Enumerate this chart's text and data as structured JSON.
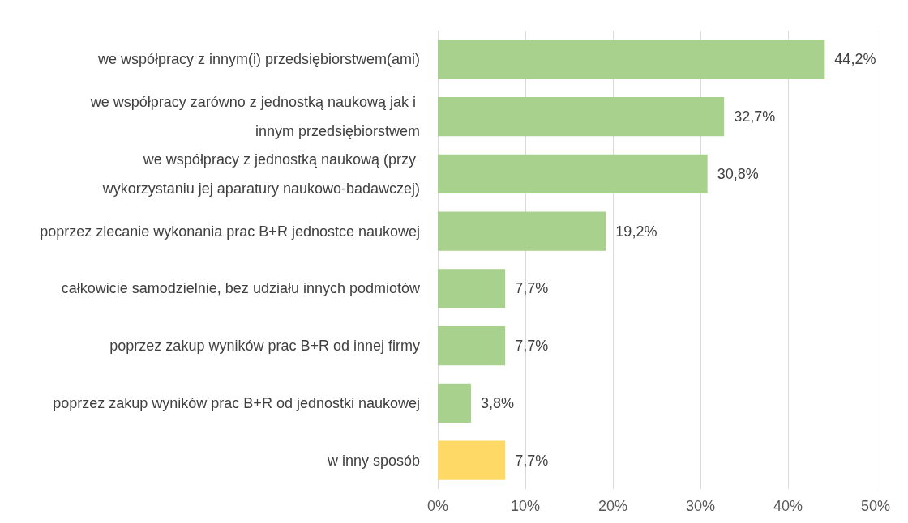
{
  "chart_data": {
    "type": "bar",
    "orientation": "horizontal",
    "categories": [
      "we współpracy z innym(i) przedsiębiorstwem(ami)",
      "we współpracy zarówno z jednostką naukową jak i innym przedsiębiorstwem",
      "we współpracy z jednostką naukową (przy wykorzystaniu jej aparatury naukowo-badawczej)",
      "poprzez zlecanie wykonania prac B+R jednostce naukowej",
      "całkowicie samodzielnie, bez udziału innych podmiotów",
      "poprzez zakup wyników prac B+R od innej firmy",
      "poprzez zakup wyników prac B+R od jednostki naukowej",
      "w inny sposób"
    ],
    "values": [
      44.2,
      32.7,
      30.8,
      19.2,
      7.7,
      7.7,
      3.8,
      7.7
    ],
    "value_labels": [
      "44,2%",
      "32,7%",
      "30,8%",
      "19,2%",
      "7,7%",
      "7,7%",
      "3,8%",
      "7,7%"
    ],
    "colors": [
      "#a9d18e",
      "#a9d18e",
      "#a9d18e",
      "#a9d18e",
      "#a9d18e",
      "#a9d18e",
      "#a9d18e",
      "#ffd966"
    ],
    "xlim": [
      0,
      50
    ],
    "xticks": [
      {
        "value": 0,
        "label": "0%"
      },
      {
        "value": 10,
        "label": "10%"
      },
      {
        "value": 20,
        "label": "20%"
      },
      {
        "value": 30,
        "label": "30%"
      },
      {
        "value": 40,
        "label": "40%"
      },
      {
        "value": 50,
        "label": "50%"
      }
    ],
    "grid": "x"
  }
}
